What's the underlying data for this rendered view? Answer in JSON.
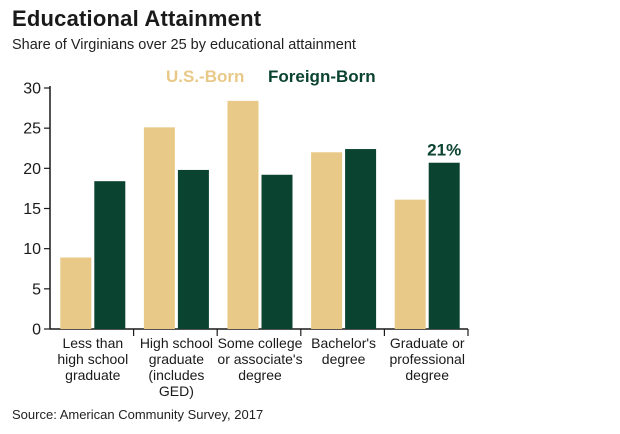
{
  "header": {
    "title": "Educational Attainment",
    "subtitle": "Share of Virginians over 25 by educational attainment"
  },
  "footer": {
    "source": "Source: American Community Survey, 2017"
  },
  "colors": {
    "us_born": "#E8C987",
    "foreign_born": "#0B4331",
    "axis": "#1a1a1a"
  },
  "chart_data": {
    "type": "bar",
    "title": "Educational Attainment",
    "subtitle": "Share of Virginians over 25 by educational attainment",
    "xlabel": "",
    "ylabel": "",
    "ylim": [
      0,
      30
    ],
    "yticks": [
      0,
      5,
      10,
      15,
      20,
      25,
      30
    ],
    "grid": false,
    "legend_position": "top",
    "categories": [
      [
        "Less than",
        "high school",
        "graduate"
      ],
      [
        "High school",
        "graduate",
        "(includes",
        "GED)"
      ],
      [
        "Some college",
        "or associate's",
        "degree"
      ],
      [
        "Bachelor's",
        "degree"
      ],
      [
        "Graduate or",
        "professional",
        "degree"
      ]
    ],
    "series": [
      {
        "name": "U.S.-Born",
        "color": "#E8C987",
        "values": [
          8.9,
          25.1,
          28.4,
          22.0,
          16.1
        ]
      },
      {
        "name": "Foreign-Born",
        "color": "#0B4331",
        "values": [
          18.4,
          19.8,
          19.2,
          22.4,
          20.7
        ]
      }
    ],
    "annotations": [
      {
        "text": "21%",
        "series": 1,
        "category": 4,
        "color": "#0B4331"
      }
    ]
  }
}
